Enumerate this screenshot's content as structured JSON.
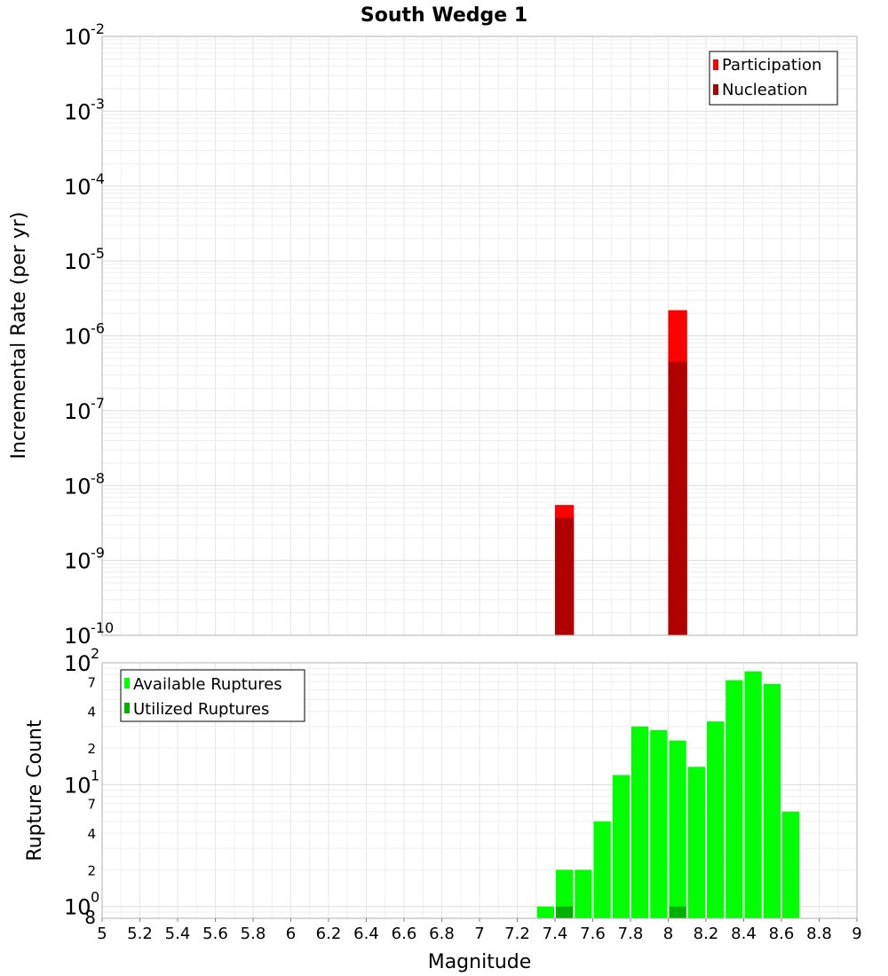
{
  "chart_data": [
    {
      "type": "bar",
      "panel": "top",
      "title": "South Wedge 1",
      "xlabel": "",
      "ylabel": "Incremental Rate (per yr)",
      "yscale": "log",
      "xlim": [
        5,
        9
      ],
      "ylim": [
        1e-10,
        0.01
      ],
      "grid": true,
      "legend": {
        "placement": "top-right",
        "entries": [
          {
            "label": "Participation",
            "color": "#ff0000"
          },
          {
            "label": "Nucleation",
            "color": "#b00000"
          }
        ]
      },
      "y_major_ticks": [
        {
          "value": 1e-10,
          "base": "10",
          "exp": "-10"
        },
        {
          "value": 1e-09,
          "base": "10",
          "exp": "-9"
        },
        {
          "value": 1e-08,
          "base": "10",
          "exp": "-8"
        },
        {
          "value": 1e-07,
          "base": "10",
          "exp": "-7"
        },
        {
          "value": 1e-06,
          "base": "10",
          "exp": "-6"
        },
        {
          "value": 1e-05,
          "base": "10",
          "exp": "-5"
        },
        {
          "value": 0.0001,
          "base": "10",
          "exp": "-4"
        },
        {
          "value": 0.001,
          "base": "10",
          "exp": "-3"
        },
        {
          "value": 0.01,
          "base": "10",
          "exp": "-2"
        }
      ],
      "bar_width": 0.1,
      "series": [
        {
          "name": "Participation",
          "color": "#ff0000",
          "points": [
            {
              "x": 7.45,
              "y": 5.5e-09
            },
            {
              "x": 8.05,
              "y": 2.2e-06
            }
          ]
        },
        {
          "name": "Nucleation",
          "color": "#b00000",
          "points": [
            {
              "x": 7.45,
              "y": 3.7e-09
            },
            {
              "x": 8.05,
              "y": 4.5e-07
            }
          ]
        }
      ]
    },
    {
      "type": "bar",
      "panel": "bottom",
      "title": "",
      "xlabel": "Magnitude",
      "ylabel": "Rupture Count",
      "yscale": "log",
      "xlim": [
        5,
        9
      ],
      "ylim": [
        0.8,
        100
      ],
      "grid": true,
      "legend": {
        "placement": "top-left",
        "entries": [
          {
            "label": "Available Ruptures",
            "color": "#00ff00"
          },
          {
            "label": "Utilized Ruptures",
            "color": "#00b000"
          }
        ]
      },
      "y_major_ticks": [
        {
          "value": 1,
          "base": "10",
          "exp": "0"
        },
        {
          "value": 10,
          "base": "10",
          "exp": "1"
        },
        {
          "value": 100,
          "base": "10",
          "exp": "2"
        }
      ],
      "y_minor_labels": [
        {
          "value": 0.8,
          "label": "8"
        },
        {
          "value": 2,
          "label": "2"
        },
        {
          "value": 4,
          "label": "4"
        },
        {
          "value": 7,
          "label": "7"
        },
        {
          "value": 20,
          "label": "2"
        },
        {
          "value": 40,
          "label": "4"
        },
        {
          "value": 70,
          "label": "7"
        }
      ],
      "x_ticks": [
        "5",
        "5.2",
        "5.4",
        "5.6",
        "5.8",
        "6",
        "6.2",
        "6.4",
        "6.6",
        "6.8",
        "7",
        "7.2",
        "7.4",
        "7.6",
        "7.8",
        "8",
        "8.2",
        "8.4",
        "8.6",
        "8.8",
        "9"
      ],
      "bar_width": 0.1,
      "series": [
        {
          "name": "Available Ruptures",
          "color": "#00ff00",
          "points": [
            {
              "x": 7.35,
              "y": 1
            },
            {
              "x": 7.45,
              "y": 2
            },
            {
              "x": 7.55,
              "y": 2
            },
            {
              "x": 7.65,
              "y": 5
            },
            {
              "x": 7.75,
              "y": 12
            },
            {
              "x": 7.85,
              "y": 30
            },
            {
              "x": 7.95,
              "y": 28
            },
            {
              "x": 8.05,
              "y": 23
            },
            {
              "x": 8.15,
              "y": 14
            },
            {
              "x": 8.25,
              "y": 33
            },
            {
              "x": 8.35,
              "y": 72
            },
            {
              "x": 8.45,
              "y": 85
            },
            {
              "x": 8.55,
              "y": 67
            },
            {
              "x": 8.65,
              "y": 6
            }
          ]
        },
        {
          "name": "Utilized Ruptures",
          "color": "#00b000",
          "points": [
            {
              "x": 7.45,
              "y": 1
            },
            {
              "x": 8.05,
              "y": 1
            }
          ]
        }
      ]
    }
  ]
}
